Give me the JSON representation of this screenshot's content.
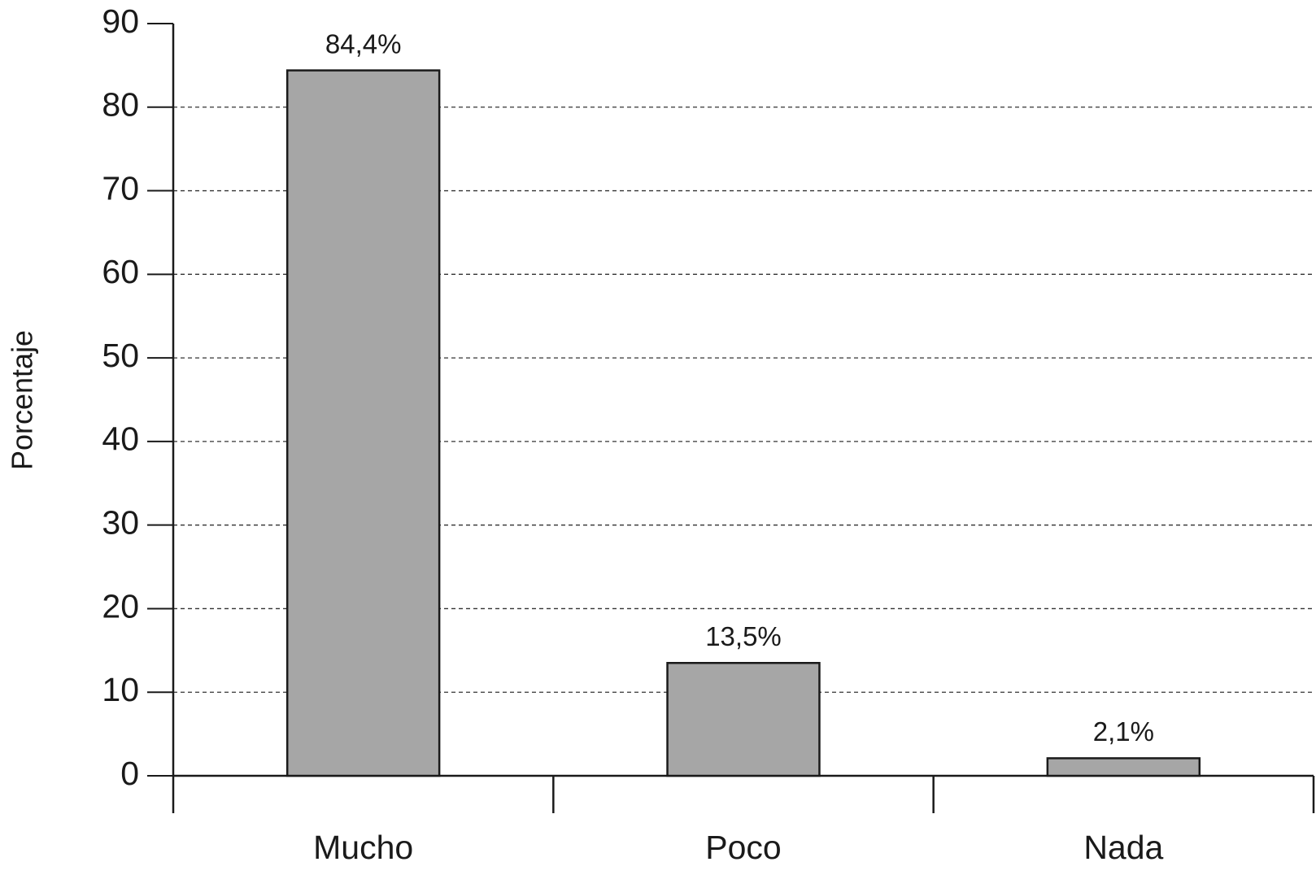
{
  "chart_data": {
    "type": "bar",
    "y_label": "Porcentaje",
    "categories": [
      "Mucho",
      "Poco",
      "Nada"
    ],
    "values": [
      84.4,
      13.5,
      2.1
    ],
    "value_labels": [
      "84,4%",
      "13,5%",
      "2,1%"
    ],
    "color": "#a6a6a6",
    "ylim": [
      0,
      90
    ],
    "yticks": [
      0,
      10,
      20,
      30,
      40,
      50,
      60,
      70,
      80,
      90
    ],
    "grid": true
  }
}
